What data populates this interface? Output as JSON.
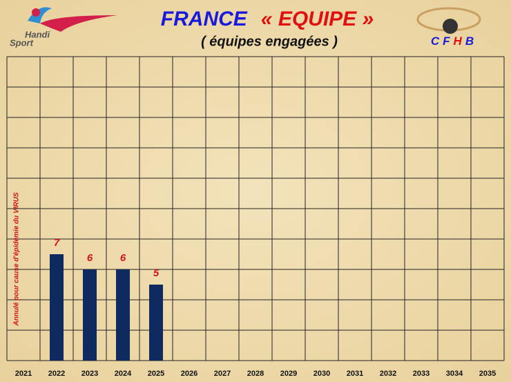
{
  "chart_data": {
    "type": "bar",
    "title": [
      "FRANCE",
      "« EQUIPE »"
    ],
    "subtitle": "( équipes engagées )",
    "logo_left": [
      "Handi",
      "Sport"
    ],
    "logo_right": [
      "C",
      "F",
      "H",
      "B"
    ],
    "annotation": "Annulé  pour  cause d'épidémie  du  VIRUS",
    "categories": [
      "2021",
      "2022",
      "2023",
      "2024",
      "2025",
      "2026",
      "2027",
      "2028",
      "2029",
      "2030",
      "2031",
      "2032",
      "2033",
      "3034",
      "2035"
    ],
    "values": [
      null,
      7,
      6,
      6,
      5,
      null,
      null,
      null,
      null,
      null,
      null,
      null,
      null,
      null,
      null
    ],
    "color": "#0f2a5e",
    "label_color": "#d0141c",
    "ylim": [
      0,
      20
    ],
    "yticks": [
      0,
      2,
      4,
      6,
      8,
      10,
      12,
      14,
      16,
      18,
      20
    ],
    "grid": true
  }
}
